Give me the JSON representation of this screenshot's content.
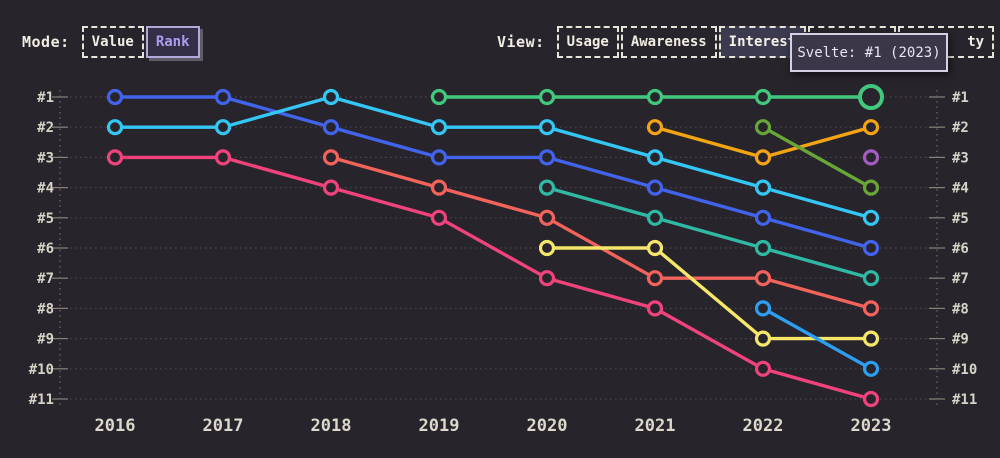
{
  "mode": {
    "label": "Mode:",
    "options": [
      {
        "label": "Value",
        "selected": false
      },
      {
        "label": "Rank",
        "selected": true
      }
    ]
  },
  "view": {
    "label": "View:",
    "tabs": [
      {
        "label": "Usage",
        "selected": false
      },
      {
        "label": "Awareness",
        "selected": false
      },
      {
        "label": "Interest",
        "selected": true
      }
    ],
    "occluded_tabs": [
      {
        "label": ""
      },
      {
        "label": "ty"
      }
    ]
  },
  "tooltip": {
    "text": "Svelte: #1 (2023)"
  },
  "chart_data": {
    "type": "line",
    "subtype": "bump-rank-chart",
    "x": [
      2016,
      2017,
      2018,
      2019,
      2020,
      2021,
      2022,
      2023
    ],
    "rank_labels": [
      "#1",
      "#2",
      "#3",
      "#4",
      "#5",
      "#6",
      "#7",
      "#8",
      "#9",
      "#10",
      "#11"
    ],
    "ylim": [
      1,
      11
    ],
    "grid": "dotted-horizontal",
    "legend_position": "none",
    "series": [
      {
        "id": "blue",
        "color": "#4263eb",
        "points": [
          [
            2016,
            1
          ],
          [
            2017,
            1
          ],
          [
            2018,
            2
          ],
          [
            2019,
            3
          ],
          [
            2020,
            3
          ],
          [
            2021,
            4
          ],
          [
            2022,
            5
          ],
          [
            2023,
            6
          ]
        ]
      },
      {
        "id": "cyan",
        "color": "#34c6f4",
        "points": [
          [
            2016,
            2
          ],
          [
            2017,
            2
          ],
          [
            2018,
            1
          ],
          [
            2019,
            2
          ],
          [
            2020,
            2
          ],
          [
            2021,
            3
          ],
          [
            2022,
            4
          ],
          [
            2023,
            5
          ]
        ]
      },
      {
        "id": "pink",
        "color": "#f0437c",
        "points": [
          [
            2016,
            3
          ],
          [
            2017,
            3
          ],
          [
            2018,
            4
          ],
          [
            2019,
            5
          ],
          [
            2020,
            7
          ],
          [
            2021,
            8
          ],
          [
            2022,
            10
          ],
          [
            2023,
            11
          ]
        ]
      },
      {
        "id": "salmon",
        "color": "#f2635c",
        "points": [
          [
            2018,
            3
          ],
          [
            2019,
            4
          ],
          [
            2020,
            5
          ],
          [
            2021,
            7
          ],
          [
            2022,
            7
          ],
          [
            2023,
            8
          ]
        ]
      },
      {
        "id": "teal",
        "color": "#2fb9a4",
        "points": [
          [
            2020,
            4
          ],
          [
            2021,
            5
          ],
          [
            2022,
            6
          ],
          [
            2023,
            7
          ]
        ]
      },
      {
        "id": "yellow",
        "color": "#f6e76a",
        "points": [
          [
            2020,
            6
          ],
          [
            2021,
            6
          ],
          [
            2022,
            9
          ],
          [
            2023,
            9
          ]
        ]
      },
      {
        "id": "amber",
        "color": "#f2a413",
        "points": [
          [
            2021,
            2
          ],
          [
            2022,
            3
          ],
          [
            2023,
            2
          ]
        ]
      },
      {
        "id": "olive",
        "color": "#68a637",
        "points": [
          [
            2022,
            2
          ],
          [
            2023,
            4
          ]
        ]
      },
      {
        "id": "sky",
        "color": "#2d9ff2",
        "points": [
          [
            2022,
            8
          ],
          [
            2023,
            10
          ]
        ]
      },
      {
        "id": "purple",
        "color": "#a35cc0",
        "points": [
          [
            2023,
            3
          ]
        ]
      },
      {
        "id": "svelte",
        "name": "Svelte",
        "color": "#41c87c",
        "points": [
          [
            2019,
            1
          ],
          [
            2020,
            1
          ],
          [
            2021,
            1
          ],
          [
            2022,
            1
          ],
          [
            2023,
            1
          ]
        ]
      }
    ],
    "highlight": {
      "series": "svelte",
      "year": 2023,
      "rank": 1
    }
  }
}
